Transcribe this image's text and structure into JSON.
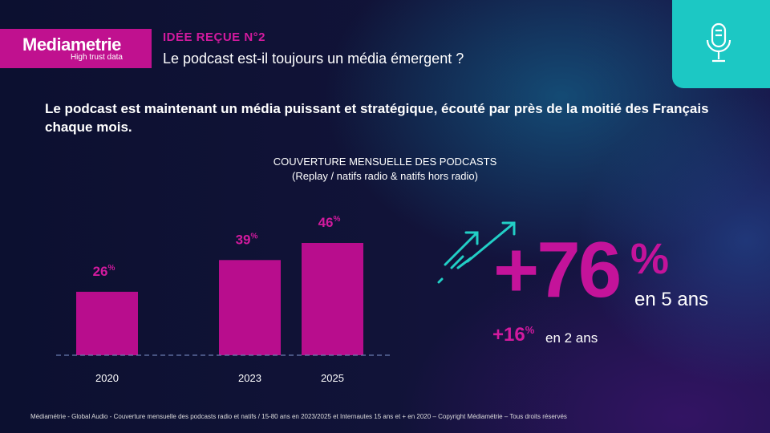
{
  "logo": {
    "name": "Mediametrie",
    "tagline": "High trust data"
  },
  "header": {
    "kicker": "IDÉE REÇUE N°2",
    "question": "Le podcast est-il toujours un média émergent ?",
    "icon": "microphone-icon"
  },
  "headline": "Le podcast est maintenant un média puissant et stratégique, écouté par près de la moitié des Français chaque mois.",
  "chart_data": {
    "type": "bar",
    "title": "COUVERTURE MENSUELLE DES PODCASTS",
    "subtitle": "(Replay / natifs radio & natifs hors radio)",
    "categories": [
      "2020",
      "2023",
      "2025"
    ],
    "values": [
      26,
      39,
      46
    ],
    "data_labels": [
      "26",
      "39",
      "46"
    ],
    "unit": "%",
    "ylim": [
      0,
      50
    ],
    "grid": false,
    "bar_color": "#b80d8d",
    "label_color": "#d21a9e"
  },
  "highlight": {
    "big_value": "+76",
    "big_unit": "%",
    "big_caption": "en 5 ans",
    "small_value": "+16",
    "small_unit": "%",
    "small_caption": "en 2 ans",
    "icon": "rising-arrows-icon"
  },
  "footer": "Médiamétrie - Global Audio - Couverture mensuelle des podcasts radio et natifs / 15-80 ans en 2023/2025 et Internautes 15 ans et + en 2020 – Copyright Médiamétrie – Tous droits réservés"
}
